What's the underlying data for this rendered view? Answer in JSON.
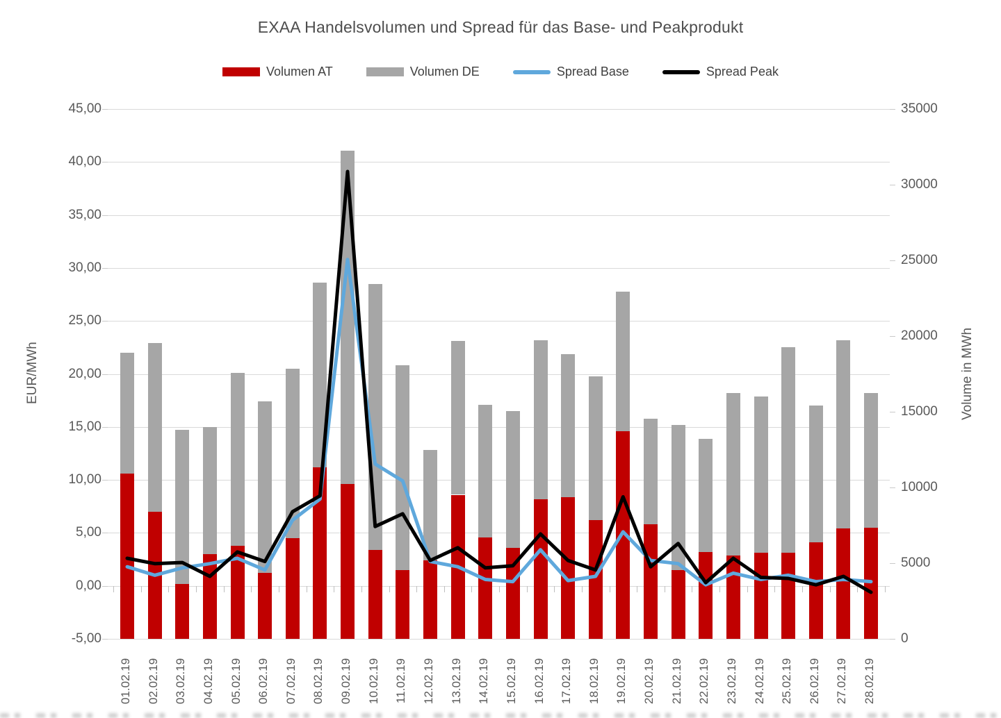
{
  "title": "EXAA Handelsvolumen und Spread für das Base- und Peakprodukt",
  "legend": [
    {
      "label": "Volumen AT",
      "marker": "bar",
      "color": "#c00000"
    },
    {
      "label": "Volumen DE",
      "marker": "bar",
      "color": "#a6a6a6"
    },
    {
      "label": "Spread Base",
      "marker": "line",
      "color": "#5fa8dc"
    },
    {
      "label": "Spread Peak",
      "marker": "line",
      "color": "#000000"
    }
  ],
  "axes": {
    "left_title": "EUR/MWh",
    "right_title": "Volume in MWh",
    "left_ticks": [
      "45,00",
      "40,00",
      "35,00",
      "30,00",
      "25,00",
      "20,00",
      "15,00",
      "10,00",
      "5,00",
      "0,00",
      "-5,00"
    ],
    "right_ticks": [
      "35000",
      "30000",
      "25000",
      "20000",
      "15000",
      "10000",
      "5000",
      "0"
    ]
  },
  "chart_data": {
    "type": "combo-stacked-bar-line",
    "title": "EXAA Handelsvolumen und Spread für das Base- und Peakprodukt",
    "categories": [
      "01.02.19",
      "02.02.19",
      "03.02.19",
      "04.02.19",
      "05.02.19",
      "06.02.19",
      "07.02.19",
      "08.02.19",
      "09.02.19",
      "10.02.19",
      "11.02.19",
      "12.02.19",
      "13.02.19",
      "14.02.19",
      "15.02.19",
      "16.02.19",
      "17.02.19",
      "18.02.19",
      "19.02.19",
      "20.02.19",
      "21.02.19",
      "22.02.19",
      "23.02.19",
      "24.02.19",
      "25.02.19",
      "26.02.19",
      "27.02.19",
      "28.02.19"
    ],
    "series": [
      {
        "name": "Volumen AT",
        "type": "bar",
        "stack": "volume",
        "axis": "right",
        "unit": "MWh",
        "color": "#c00000",
        "values": [
          10920,
          8400,
          3640,
          5600,
          6160,
          4340,
          6650,
          11340,
          10220,
          5880,
          4550,
          5180,
          9520,
          6720,
          6020,
          9240,
          9380,
          7840,
          13720,
          7560,
          4550,
          5740,
          5530,
          5670,
          5670,
          6370,
          7280,
          7350
        ]
      },
      {
        "name": "Volumen DE",
        "type": "bar",
        "stack": "volume",
        "axis": "right",
        "unit": "MWh",
        "color": "#a6a6a6",
        "values": [
          7980,
          11130,
          10150,
          8400,
          11410,
          11340,
          11200,
          12180,
          22050,
          17570,
          13510,
          7280,
          10150,
          8750,
          9030,
          10500,
          9450,
          9520,
          9240,
          7000,
          9590,
          7490,
          10710,
          10360,
          13580,
          9030,
          12460,
          8890
        ]
      },
      {
        "name": "Spread Base",
        "type": "line",
        "axis": "left",
        "unit": "EUR/MWh",
        "color": "#5fa8dc",
        "values": [
          1.8,
          1.0,
          1.7,
          2.1,
          2.6,
          1.5,
          6.2,
          8.2,
          30.8,
          11.5,
          9.9,
          2.3,
          1.8,
          0.6,
          0.4,
          3.4,
          0.5,
          0.9,
          5.1,
          2.4,
          2.1,
          0.1,
          1.2,
          0.6,
          1.0,
          0.4,
          0.6,
          0.4
        ]
      },
      {
        "name": "Spread Peak",
        "type": "line",
        "axis": "left",
        "unit": "EUR/MWh",
        "color": "#000000",
        "values": [
          2.6,
          2.1,
          2.2,
          0.9,
          3.2,
          2.3,
          7.0,
          8.5,
          39.1,
          5.6,
          6.8,
          2.4,
          3.6,
          1.7,
          1.9,
          4.9,
          2.4,
          1.5,
          8.4,
          1.8,
          4.0,
          0.3,
          2.6,
          0.8,
          0.7,
          0.1,
          0.9,
          -0.6
        ]
      }
    ],
    "xlabel": "",
    "ylabel_left": "EUR/MWh",
    "ylabel_right": "Volume in MWh",
    "ylim_left": [
      -5,
      45
    ],
    "ylim_right": [
      0,
      35000
    ],
    "grid": "horizontal",
    "legend_position": "top"
  }
}
